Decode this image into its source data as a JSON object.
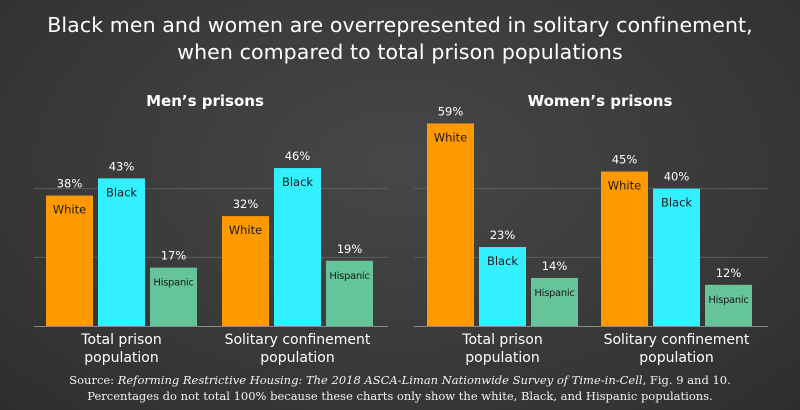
{
  "title": {
    "line1": "Black men and women are overrepresented in solitary confinement,",
    "line2": "when compared to total prison populations"
  },
  "colors": {
    "White": "#ff9900",
    "Black": "#33f0ff",
    "Hispanic": "#66c49a"
  },
  "chart_data": [
    {
      "type": "bar",
      "title": "Men’s prisons",
      "categories": [
        "Total prison population",
        "Solitary confinement population"
      ],
      "category_lines": [
        [
          "Total prison",
          "population"
        ],
        [
          "Solitary confinement",
          "population"
        ]
      ],
      "series": [
        {
          "name": "White",
          "values": [
            38,
            32
          ]
        },
        {
          "name": "Black",
          "values": [
            43,
            46
          ]
        },
        {
          "name": "Hispanic",
          "values": [
            17,
            19
          ]
        }
      ],
      "value_suffix": "%",
      "ylim": [
        0,
        60
      ],
      "grid": true
    },
    {
      "type": "bar",
      "title": "Women’s prisons",
      "categories": [
        "Total prison population",
        "Solitary confinement population"
      ],
      "category_lines": [
        [
          "Total prison",
          "population"
        ],
        [
          "Solitary confinement",
          "population"
        ]
      ],
      "series": [
        {
          "name": "White",
          "values": [
            59,
            45
          ]
        },
        {
          "name": "Black",
          "values": [
            23,
            40
          ]
        },
        {
          "name": "Hispanic",
          "values": [
            14,
            12
          ]
        }
      ],
      "value_suffix": "%",
      "ylim": [
        0,
        60
      ],
      "grid": true
    }
  ],
  "footer": {
    "source_prefix": "Source: ",
    "source_title": "Reforming Restrictive Housing: The 2018 ASCA-Liman Nationwide Survey of Time-in-Cell",
    "source_suffix": ", Fig. 9 and 10.",
    "note": "Percentages do not total 100% because these charts only show the white, Black, and Hispanic populations."
  }
}
